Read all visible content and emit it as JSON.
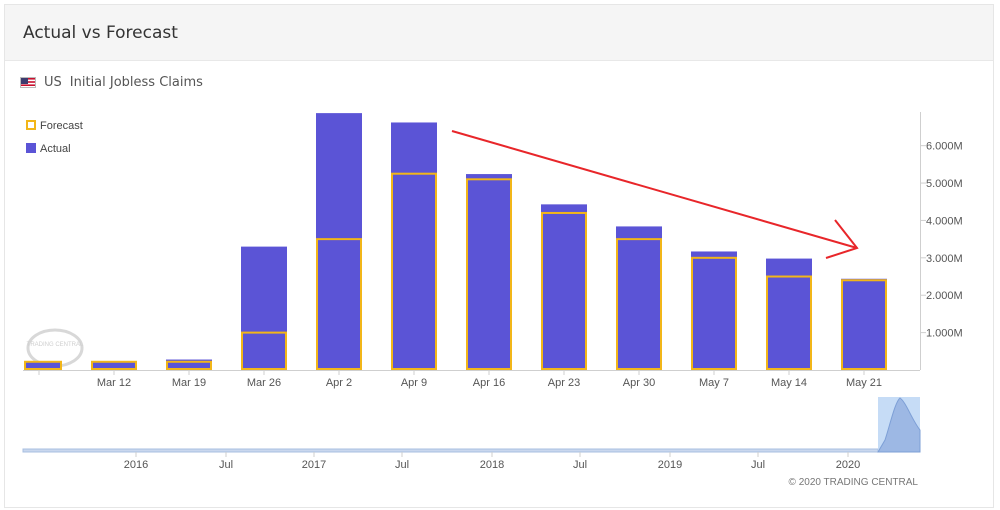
{
  "panel": {
    "title": "Actual vs Forecast"
  },
  "series_info": {
    "country": "US",
    "indicator": "Initial Jobless Claims",
    "flag_icon": "us-flag-icon"
  },
  "colors": {
    "actual": "#5b54d6",
    "forecast": "#f2b619",
    "arrow": "#e8262a",
    "navigator_selection": "#bcd6f5"
  },
  "chart_data": {
    "type": "bar",
    "title": "",
    "categories": [
      "",
      "Mar 12",
      "Mar 19",
      "Mar 26",
      "Apr 2",
      "Apr 9",
      "Apr 16",
      "Apr 23",
      "Apr 30",
      "May 7",
      "May 14",
      "May 21"
    ],
    "series": [
      {
        "name": "Forecast",
        "values": [
          0.22,
          0.22,
          0.22,
          1.0,
          3.5,
          5.25,
          5.1,
          4.2,
          3.5,
          3.0,
          2.5,
          2.4
        ]
      },
      {
        "name": "Actual",
        "values": [
          0.21,
          0.21,
          0.28,
          3.3,
          6.87,
          6.62,
          5.24,
          4.43,
          3.84,
          3.17,
          2.98,
          2.44
        ]
      }
    ],
    "unit": "M",
    "ylim": [
      0,
      6.9
    ],
    "yticks": [
      "1.000M",
      "2.000M",
      "3.000M",
      "4.000M",
      "5.000M",
      "6.000M"
    ],
    "legend": {
      "position": "top-left",
      "entries": [
        "Forecast",
        "Actual"
      ]
    },
    "navigator": {
      "labels": [
        "2016",
        "Jul",
        "2017",
        "Jul",
        "2018",
        "Jul",
        "2019",
        "Jul",
        "2020"
      ]
    },
    "watermark": "TRADING CENTRAL",
    "credit": "© 2020 TRADING CENTRAL"
  }
}
